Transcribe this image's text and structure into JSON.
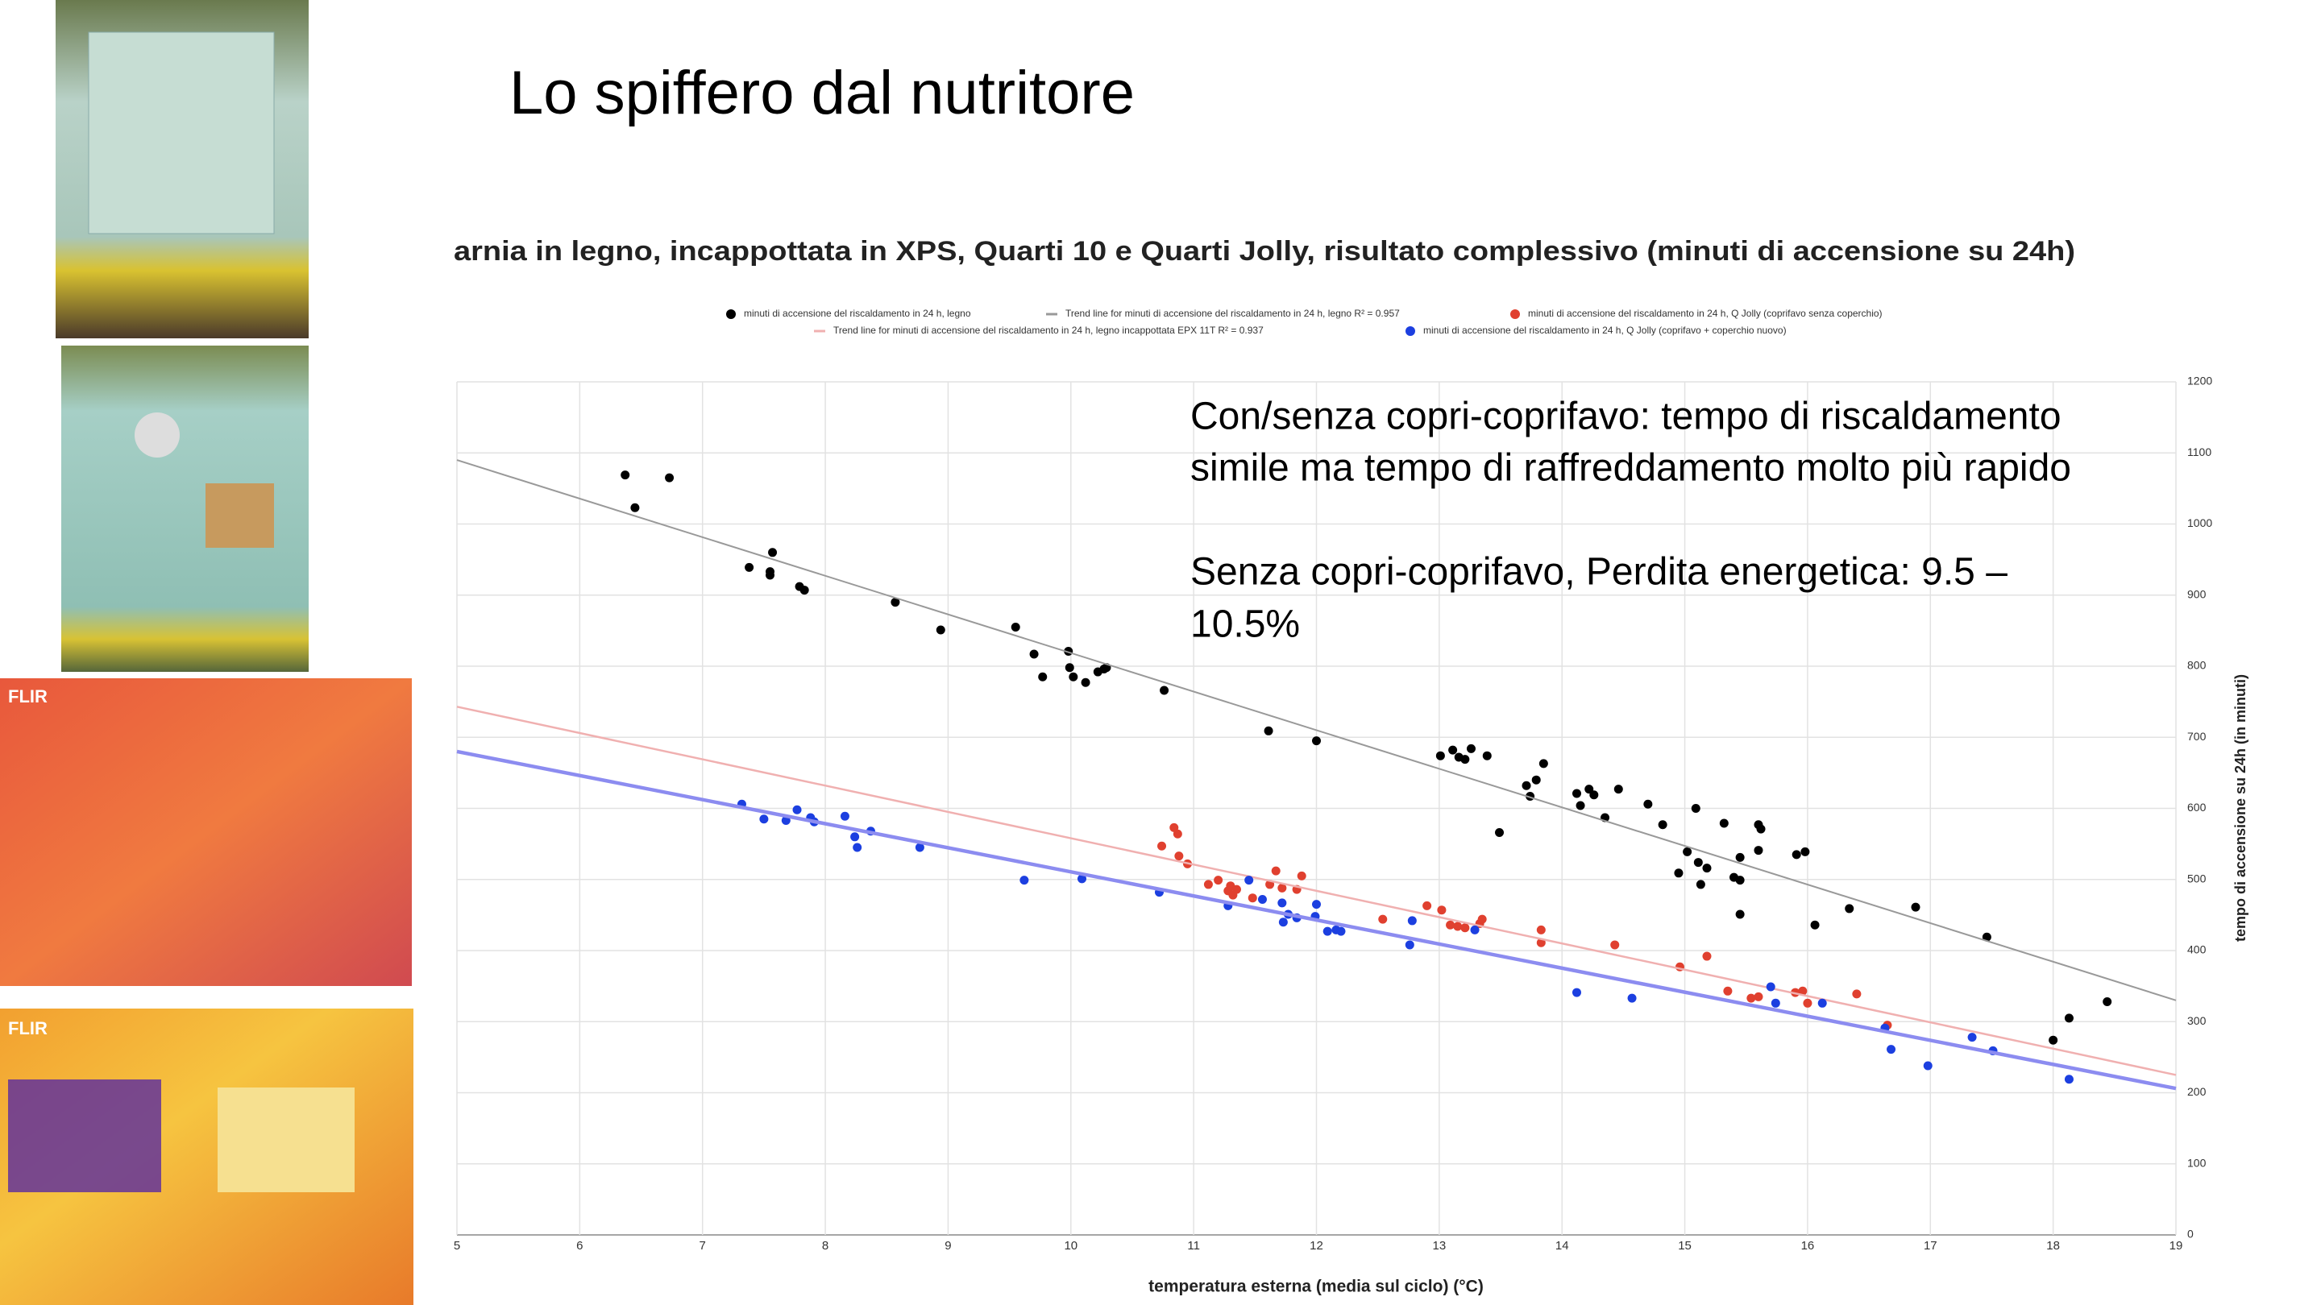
{
  "slide_title": "Lo spiffero dal nutritore",
  "image_labels": [
    "FLIR",
    "FLIR"
  ],
  "annotation": [
    "Con/senza copri-coprifavo: tempo di riscaldamento",
    "simile ma tempo di raffreddamento molto più rapido",
    "Senza copri-coprifavo, Perdita energetica: 9.5 –",
    "10.5%"
  ],
  "chart_data": {
    "type": "scatter",
    "title": "arnia in legno, incappottata in XPS, Quarti 10 e Quarti Jolly, risultato complessivo (minuti di accensione su 24h)",
    "x_label": "temperatura esterna (media sul ciclo) (°C)",
    "y_label": "tempo di accensione su 24h (in minuti)",
    "xlim": [
      5,
      19
    ],
    "ylim": [
      0,
      1200
    ],
    "xticks": [
      5,
      6,
      7,
      8,
      9,
      10,
      11,
      12,
      13,
      14,
      15,
      16,
      17,
      18,
      19
    ],
    "yticks": [
      0,
      100,
      200,
      300,
      400,
      500,
      600,
      700,
      800,
      900,
      1000,
      1100,
      1200
    ],
    "grid": true,
    "series": [
      {
        "name": "minuti di accensione del riscaldamento in 24 h, legno",
        "kind": "points",
        "color": "#000000",
        "x": [
          6.37,
          6.45,
          6.73,
          7.38,
          7.55,
          7.57,
          7.55,
          7.79,
          7.83,
          8.57,
          8.94,
          9.55,
          9.7,
          9.77,
          9.98,
          9.99,
          10.02,
          10.12,
          10.22,
          10.27,
          10.29,
          10.76,
          11.61,
          12.0,
          13.01,
          13.11,
          13.16,
          13.21,
          13.26,
          13.39,
          13.49,
          13.71,
          13.74,
          13.79,
          13.85,
          14.12,
          14.15,
          14.22,
          14.26,
          14.35,
          14.46,
          14.7,
          14.82,
          14.95,
          15.02,
          15.09,
          15.11,
          15.13,
          15.18,
          15.32,
          15.4,
          15.45,
          15.45,
          15.45,
          15.6,
          15.6,
          15.62,
          15.91,
          15.98,
          16.06,
          16.34,
          16.88,
          17.46,
          18.0,
          18.13,
          18.44
        ],
        "values": [
          1069,
          1023,
          1065,
          939,
          928,
          960,
          933,
          912,
          907,
          890,
          851,
          855,
          817,
          785,
          821,
          798,
          785,
          777,
          792,
          796,
          798,
          766,
          709,
          695,
          674,
          682,
          672,
          669,
          684,
          674,
          566,
          632,
          617,
          640,
          663,
          621,
          604,
          627,
          619,
          587,
          627,
          606,
          577,
          509,
          539,
          600,
          524,
          493,
          516,
          579,
          503,
          499,
          451,
          531,
          541,
          577,
          571,
          535,
          539,
          436,
          459,
          461,
          419,
          274,
          305,
          328
        ]
      },
      {
        "name": "Trend line for minuti di accensione del riscaldamento in 24 h, legno R² = 0.957",
        "kind": "line",
        "color": "#999999",
        "x": [
          5,
          19
        ],
        "values": [
          1090,
          330
        ]
      },
      {
        "name": "minuti di accensione del riscaldamento in 24 h, Q Jolly (coprifavo senza coperchio)",
        "kind": "points",
        "color": "#e0402f",
        "x": [
          10.74,
          10.84,
          10.87,
          10.88,
          10.95,
          11.12,
          11.2,
          11.28,
          11.3,
          11.32,
          11.35,
          11.48,
          11.62,
          11.67,
          11.72,
          11.84,
          11.88,
          12.54,
          12.9,
          13.02,
          13.09,
          13.15,
          13.21,
          13.33,
          13.35,
          13.83,
          13.83,
          14.43,
          14.96,
          15.18,
          15.35,
          15.54,
          15.6,
          15.9,
          15.96,
          16.0,
          16.4,
          16.65
        ],
        "values": [
          547,
          573,
          564,
          533,
          522,
          493,
          499,
          484,
          491,
          478,
          486,
          474,
          493,
          512,
          488,
          486,
          505,
          444,
          463,
          457,
          436,
          434,
          432,
          438,
          444,
          429,
          411,
          408,
          377,
          392,
          343,
          333,
          335,
          341,
          343,
          326,
          339,
          295
        ]
      },
      {
        "name": "Trend line for minuti di accensione del riscaldamento in 24 h, legno incappottata EPX  11T  R² = 0.937",
        "kind": "line",
        "color": "#f0b0b0",
        "x": [
          5,
          19
        ],
        "values": [
          743,
          225
        ]
      },
      {
        "name": "minuti di accensione del riscaldamento in 24 h, Q Jolly (coprifavo + coperchio nuovo)",
        "kind": "points",
        "color": "#1c3fe0",
        "x": [
          7.32,
          7.5,
          7.68,
          7.77,
          7.88,
          7.91,
          8.16,
          8.24,
          8.26,
          8.37,
          8.77,
          9.62,
          10.09,
          10.72,
          11.28,
          11.45,
          11.56,
          11.72,
          11.73,
          11.77,
          11.84,
          11.99,
          12.0,
          12.09,
          12.16,
          12.2,
          12.76,
          12.78,
          13.29,
          14.12,
          14.57,
          15.7,
          15.74,
          16.12,
          16.63,
          16.68,
          16.98,
          17.34,
          17.51,
          18.13
        ],
        "values": [
          606,
          585,
          583,
          598,
          587,
          581,
          589,
          560,
          545,
          568,
          545,
          499,
          501,
          482,
          463,
          499,
          472,
          467,
          440,
          451,
          446,
          448,
          465,
          427,
          429,
          427,
          408,
          442,
          429,
          341,
          333,
          349,
          326,
          326,
          291,
          261,
          238,
          278,
          259,
          219
        ]
      },
      {
        "kind": "line",
        "color": "#8c8cf0",
        "x": [
          5,
          19
        ],
        "values": [
          680,
          206
        ]
      }
    ]
  }
}
